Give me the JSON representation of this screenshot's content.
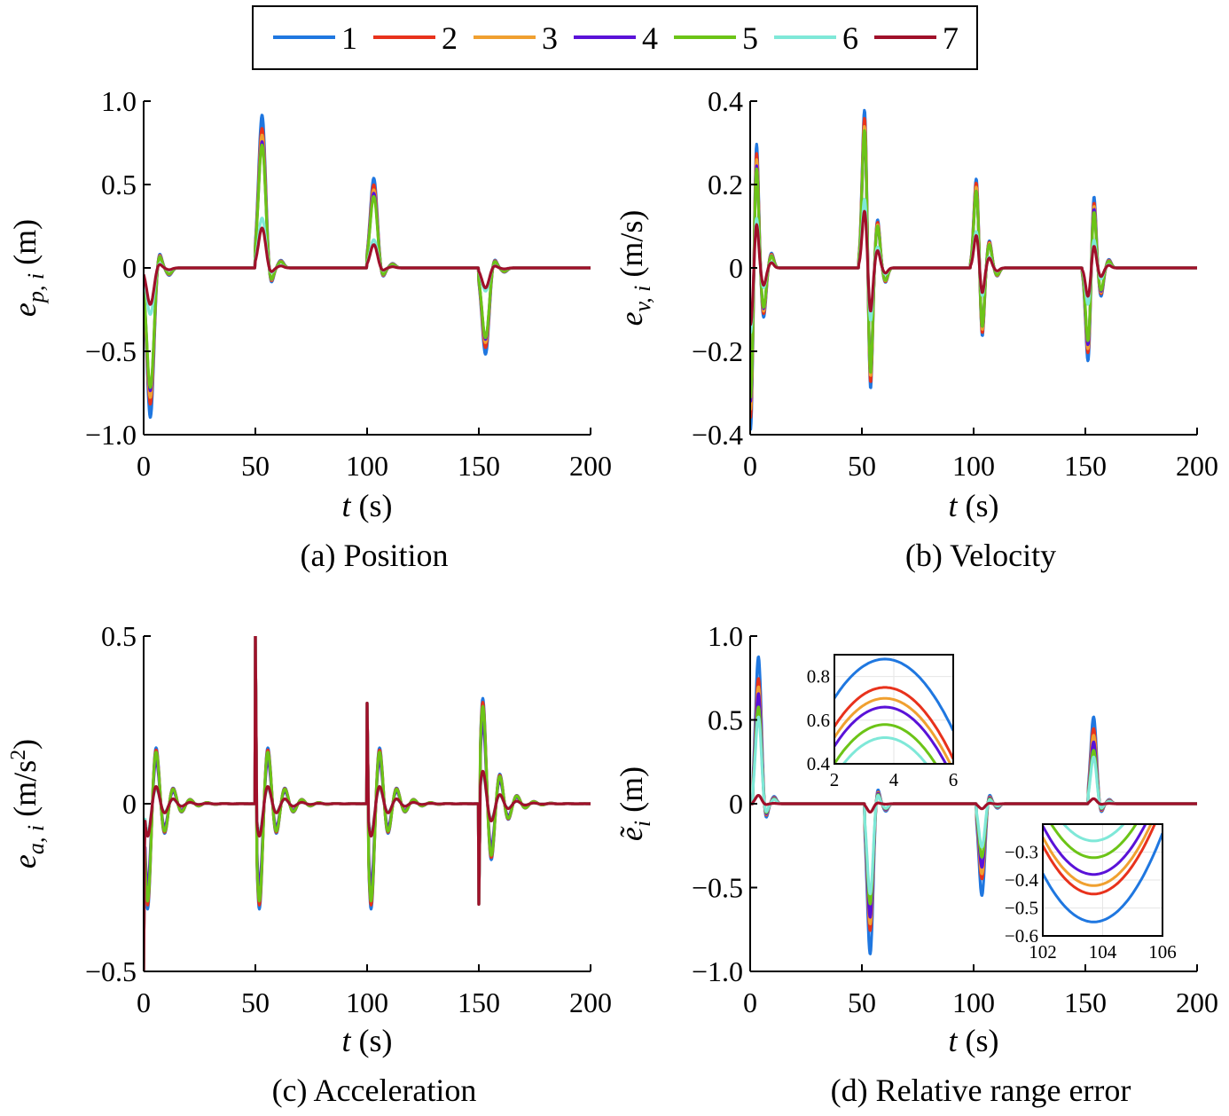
{
  "legend": {
    "items": [
      {
        "label": "1",
        "color": "#1f77e0"
      },
      {
        "label": "2",
        "color": "#e8321c"
      },
      {
        "label": "3",
        "color": "#f0a030"
      },
      {
        "label": "4",
        "color": "#5a12d8"
      },
      {
        "label": "5",
        "color": "#6cc417"
      },
      {
        "label": "6",
        "color": "#7fe8d8"
      },
      {
        "label": "7",
        "color": "#a0102a"
      }
    ]
  },
  "chart_data": [
    {
      "type": "line",
      "caption": "(a) Position",
      "xlabel_var": "t",
      "xlabel_unit": " (s)",
      "ylabel_var": "e",
      "ylabel_sub": "p, i",
      "ylabel_unit": " (m)",
      "xlim": [
        0,
        200
      ],
      "ylim": [
        -1.0,
        1.0
      ],
      "xticks": [
        0,
        50,
        100,
        150,
        200
      ],
      "yticks": [
        -1.0,
        -0.5,
        0,
        0.5,
        1.0
      ],
      "yticklabels": [
        "−1.0",
        "−0.5",
        "0",
        "0.5",
        "1.0"
      ],
      "pulses": [
        {
          "t": 3,
          "dir": -1,
          "w": 6,
          "damp": 10,
          "kind": "smooth"
        },
        {
          "t": 53,
          "dir": 1,
          "w": 6,
          "damp": 10,
          "kind": "smooth"
        },
        {
          "t": 103,
          "dir": 1,
          "w": 6,
          "damp": 10,
          "kind": "smooth"
        },
        {
          "t": 153,
          "dir": -1,
          "w": 6,
          "damp": 10,
          "kind": "smooth"
        }
      ],
      "pulse_amps": [
        [
          0.9,
          0.82,
          0.78,
          0.74,
          0.72,
          0.28,
          0.22
        ],
        [
          0.92,
          0.84,
          0.8,
          0.76,
          0.74,
          0.3,
          0.24
        ],
        [
          0.54,
          0.5,
          0.47,
          0.45,
          0.43,
          0.17,
          0.14
        ],
        [
          0.52,
          0.48,
          0.45,
          0.43,
          0.42,
          0.14,
          0.12
        ]
      ]
    },
    {
      "type": "line",
      "caption": "(b) Velocity",
      "xlabel_var": "t",
      "xlabel_unit": " (s)",
      "ylabel_var": "e",
      "ylabel_sub": "v, i",
      "ylabel_unit": " (m/s)",
      "xlim": [
        0,
        200
      ],
      "ylim": [
        -0.4,
        0.4
      ],
      "xticks": [
        0,
        50,
        100,
        150,
        200
      ],
      "yticks": [
        -0.4,
        -0.2,
        0,
        0.2,
        0.4
      ],
      "yticklabels": [
        "−0.4",
        "−0.2",
        "0",
        "0.2",
        "0.4"
      ],
      "pulses": [
        {
          "t": 0,
          "dir": -1,
          "w": 5,
          "damp": 10,
          "kind": "deriv"
        },
        {
          "t": 51,
          "dir": 1,
          "w": 5,
          "damp": 10,
          "kind": "deriv"
        },
        {
          "t": 101,
          "dir": 1,
          "w": 5,
          "damp": 10,
          "kind": "deriv"
        },
        {
          "t": 151,
          "dir": -1,
          "w": 5,
          "damp": 10,
          "kind": "deriv"
        }
      ],
      "pulse_amps": [
        [
          0.4,
          0.37,
          0.35,
          0.33,
          0.32,
          0.16,
          0.14
        ],
        [
          0.39,
          0.37,
          0.35,
          0.33,
          0.34,
          0.17,
          0.14
        ],
        [
          0.22,
          0.21,
          0.2,
          0.19,
          0.19,
          0.09,
          0.08
        ],
        [
          0.23,
          0.21,
          0.2,
          0.19,
          0.18,
          0.09,
          0.07
        ]
      ]
    },
    {
      "type": "line",
      "caption": "(c) Acceleration",
      "xlabel_var": "t",
      "xlabel_unit": " (s)",
      "ylabel_var": "e",
      "ylabel_sub": "a, i",
      "ylabel_unit": " (m/s",
      "ylabel_sup": "2",
      "ylabel_close": ")",
      "xlim": [
        0,
        200
      ],
      "ylim": [
        -0.5,
        0.5
      ],
      "xticks": [
        0,
        50,
        100,
        150,
        200
      ],
      "yticks": [
        -0.5,
        0,
        0.5
      ],
      "yticklabels": [
        "−0.5",
        "0",
        "0.5"
      ],
      "pulses": [
        {
          "t": 0,
          "dir": -1,
          "w": 4,
          "damp": 8,
          "kind": "spike"
        },
        {
          "t": 50,
          "dir": 1,
          "w": 4,
          "damp": 8,
          "kind": "spike"
        },
        {
          "t": 100,
          "dir": 1,
          "w": 4,
          "damp": 8,
          "kind": "spike"
        },
        {
          "t": 150,
          "dir": -1,
          "w": 4,
          "damp": 8,
          "kind": "spike"
        }
      ],
      "pulse_amps": [
        [
          0.5,
          0.5,
          0.5,
          0.5,
          0.5,
          0.5,
          0.5
        ],
        [
          0.5,
          0.5,
          0.5,
          0.5,
          0.5,
          0.5,
          0.5
        ],
        [
          0.3,
          0.3,
          0.3,
          0.3,
          0.3,
          0.3,
          0.3
        ],
        [
          0.3,
          0.3,
          0.3,
          0.3,
          0.3,
          0.3,
          0.3
        ]
      ]
    },
    {
      "type": "line",
      "caption": "(d) Relative range error",
      "xlabel_var": "t",
      "xlabel_unit": " (s)",
      "ylabel_var": "ẽ",
      "ylabel_sub": "i",
      "ylabel_unit": " (m)",
      "xlim": [
        0,
        200
      ],
      "ylim": [
        -1.0,
        1.0
      ],
      "xticks": [
        0,
        50,
        100,
        150,
        200
      ],
      "yticks": [
        -1.0,
        -0.5,
        0,
        0.5,
        1.0
      ],
      "yticklabels": [
        "−1.0",
        "−0.5",
        "0",
        "0.5",
        "1.0"
      ],
      "pulses": [
        {
          "t": 3.7,
          "dir": 1,
          "w": 5,
          "damp": 10,
          "kind": "smooth"
        },
        {
          "t": 53.7,
          "dir": -1,
          "w": 5,
          "damp": 10,
          "kind": "smooth"
        },
        {
          "t": 103.7,
          "dir": -1,
          "w": 5,
          "damp": 10,
          "kind": "smooth"
        },
        {
          "t": 153.7,
          "dir": 1,
          "w": 5,
          "damp": 10,
          "kind": "smooth"
        }
      ],
      "pulse_amps": [
        [
          0.88,
          0.75,
          0.7,
          0.66,
          0.58,
          0.52,
          0.05
        ],
        [
          0.9,
          0.76,
          0.72,
          0.68,
          0.6,
          0.54,
          0.05
        ],
        [
          0.55,
          0.45,
          0.42,
          0.38,
          0.32,
          0.26,
          0.03
        ],
        [
          0.52,
          0.45,
          0.41,
          0.37,
          0.32,
          0.28,
          0.03
        ]
      ],
      "insets": [
        {
          "xlim": [
            2,
            6
          ],
          "ylim": [
            0.4,
            0.9
          ],
          "xticks": [
            2,
            4,
            6
          ],
          "xticklabels": [
            "2",
            "4",
            "6"
          ],
          "yticks": [
            0.4,
            0.6,
            0.8
          ],
          "yticklabels": [
            "0.4",
            "0.6",
            "0.8"
          ],
          "center": 3.7,
          "peaks": [
            0.88,
            0.75,
            0.7,
            0.66,
            0.58,
            0.52
          ],
          "curv": 0.062,
          "dir": 1
        },
        {
          "xlim": [
            102,
            106
          ],
          "ylim": [
            -0.6,
            -0.2
          ],
          "xticks": [
            102,
            104,
            106
          ],
          "xticklabels": [
            "102",
            "104",
            "106"
          ],
          "yticks": [
            -0.6,
            -0.5,
            -0.4,
            -0.3
          ],
          "yticklabels": [
            "−0.6",
            "−0.5",
            "−0.4",
            "−0.3"
          ],
          "center": 103.7,
          "peaks": [
            -0.55,
            -0.45,
            -0.42,
            -0.38,
            -0.32,
            -0.26
          ],
          "curv": 0.06,
          "dir": -1
        }
      ]
    }
  ]
}
